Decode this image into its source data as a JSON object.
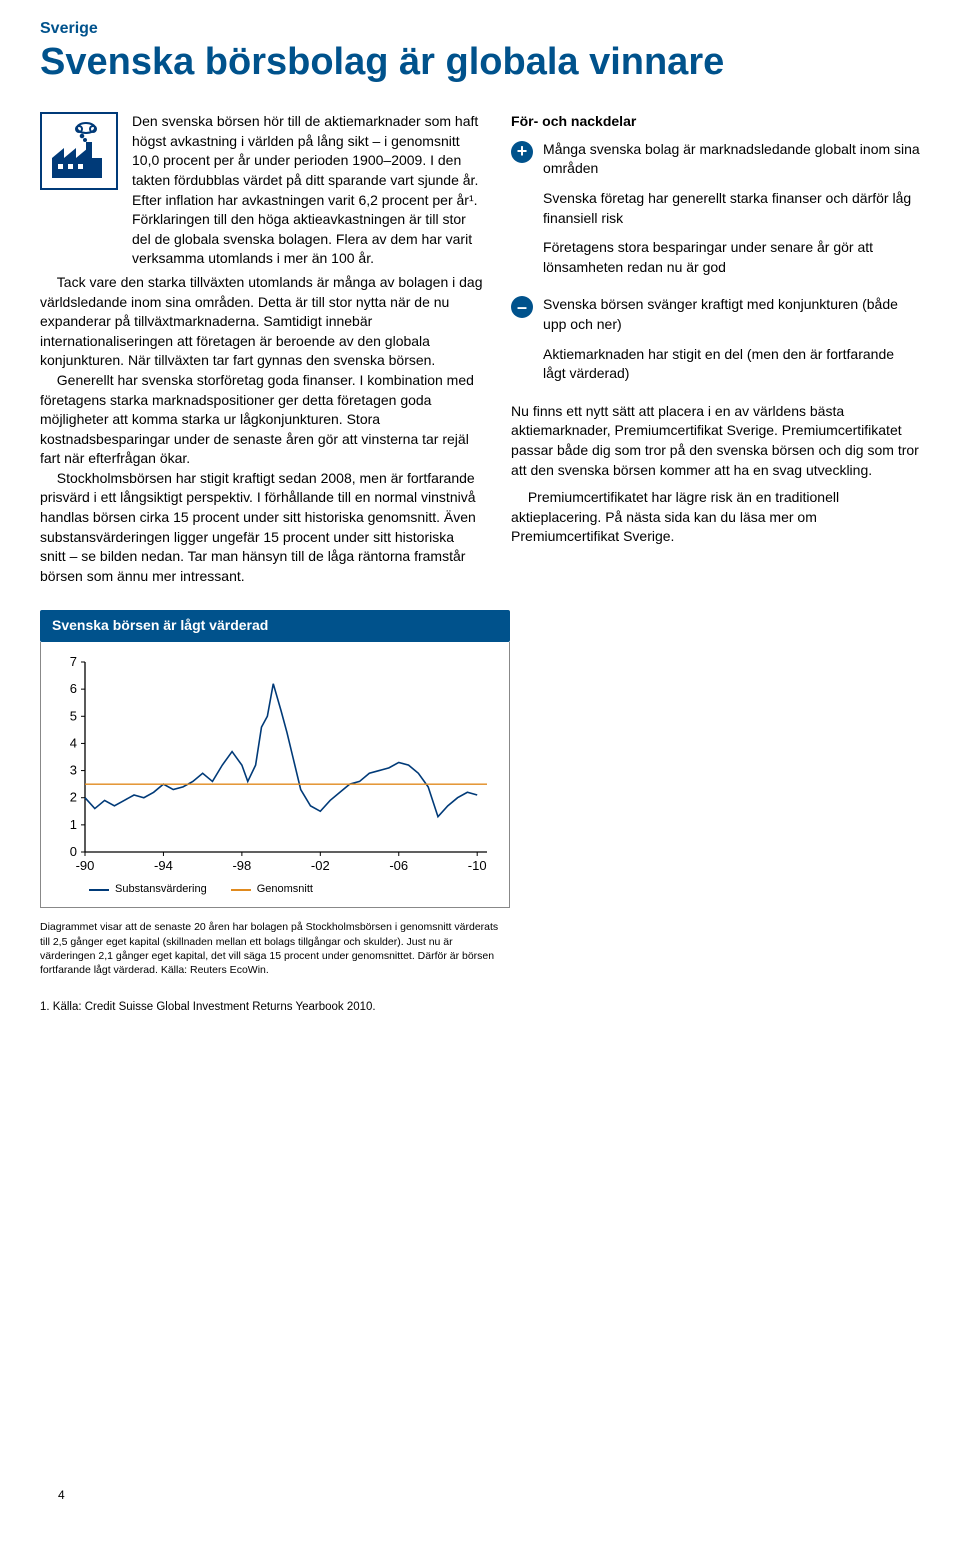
{
  "eyebrow": "Sverige",
  "eyebrow_color": "#00528c",
  "headline": "Svenska börsbolag är globala vinnare",
  "headline_color": "#00528c",
  "left": {
    "p1": "Den svenska börsen hör till de aktiemarknader som haft högst avkastning i världen på lång sikt – i genomsnitt 10,0 procent per år under perioden 1900–2009. I den takten fördubblas värdet på ditt sparande vart sjunde år. Efter inflation har avkastningen varit 6,2 procent per år¹. Förklaringen till den höga aktieavkastningen är till stor del de globala svenska bolagen. Flera av dem har varit verksamma utomlands i mer än 100 år.",
    "p2": "Tack vare den starka tillväxten utomlands är många av bolagen i dag världsledande inom sina områden. Detta är till stor nytta när de nu expanderar på tillväxtmarknaderna. Samtidigt innebär internationaliseringen att företagen är beroende av den globala konjunkturen. När tillväxten tar fart gynnas den svenska börsen.",
    "p3": "Generellt har svenska storföretag goda finanser. I kombination med företagens starka marknadspositioner ger detta företagen goda möjligheter att komma starka ur lågkonjunkturen. Stora kostnadsbesparingar under de senaste åren gör att vinsterna tar rejäl fart när efterfrågan ökar.",
    "p4": "Stockholmsbörsen har stigit kraftigt sedan 2008, men är fortfarande prisvärd i ett långsiktigt perspektiv. I förhållande till en normal vinstnivå handlas börsen cirka 15 procent under sitt historiska genomsnitt. Även substansvärderingen ligger ungefär 15 procent under sitt historiska snitt – se bilden nedan. Tar man hänsyn till de låga räntorna framstår börsen som ännu mer intressant."
  },
  "right": {
    "heading": "För- och nackdelar",
    "plus_items": [
      "Många svenska bolag är marknadsledande globalt inom sina områden",
      "Svenska företag har generellt starka finanser och därför låg finansiell risk",
      "Företagens stora besparingar under senare år gör att lönsamheten redan nu är god"
    ],
    "minus_items": [
      "Svenska börsen svänger kraftigt med konjunkturen (både upp och ner)",
      "Aktiemarknaden har stigit en del (men den är fortfarande lågt värderad)"
    ],
    "body1": "Nu finns ett nytt sätt att placera i en av världens bästa aktiemarknader, Premiumcertifikat Sverige. Premiumcertifikatet passar både dig som tror på den svenska börsen och dig som tror att den svenska börsen kommer att ha en svag utveckling.",
    "body2": "Premiumcertifikatet har lägre risk än en traditionell aktieplacering. På nästa sida kan du läsa mer om Premiumcertifikat Sverige."
  },
  "chart": {
    "title": "Svenska börsen är lågt värderad",
    "type": "line",
    "ylim": [
      0,
      7
    ],
    "ytick_step": 1,
    "xticks_labels": [
      "-90",
      "-94",
      "-98",
      "-02",
      "-06",
      "-10"
    ],
    "xticks_pos": [
      0,
      4,
      8,
      12,
      16,
      20
    ],
    "xlim": [
      0,
      20.5
    ],
    "series": [
      {
        "name": "Substansvärdering",
        "color": "#003a78",
        "width": 1.6,
        "points": [
          [
            0,
            2.0
          ],
          [
            0.5,
            1.6
          ],
          [
            1,
            1.9
          ],
          [
            1.5,
            1.7
          ],
          [
            2,
            1.9
          ],
          [
            2.5,
            2.1
          ],
          [
            3,
            2.0
          ],
          [
            3.5,
            2.2
          ],
          [
            4,
            2.5
          ],
          [
            4.5,
            2.3
          ],
          [
            5,
            2.4
          ],
          [
            5.5,
            2.6
          ],
          [
            6,
            2.9
          ],
          [
            6.5,
            2.6
          ],
          [
            7,
            3.2
          ],
          [
            7.5,
            3.7
          ],
          [
            8,
            3.2
          ],
          [
            8.3,
            2.6
          ],
          [
            8.7,
            3.2
          ],
          [
            9,
            4.6
          ],
          [
            9.3,
            5.0
          ],
          [
            9.6,
            6.2
          ],
          [
            10,
            5.2
          ],
          [
            10.3,
            4.4
          ],
          [
            10.6,
            3.5
          ],
          [
            11,
            2.3
          ],
          [
            11.5,
            1.7
          ],
          [
            12,
            1.5
          ],
          [
            12.5,
            1.9
          ],
          [
            13,
            2.2
          ],
          [
            13.5,
            2.5
          ],
          [
            14,
            2.6
          ],
          [
            14.5,
            2.9
          ],
          [
            15,
            3.0
          ],
          [
            15.5,
            3.1
          ],
          [
            16,
            3.3
          ],
          [
            16.5,
            3.2
          ],
          [
            17,
            2.9
          ],
          [
            17.5,
            2.4
          ],
          [
            18,
            1.3
          ],
          [
            18.5,
            1.7
          ],
          [
            19,
            2.0
          ],
          [
            19.5,
            2.2
          ],
          [
            20,
            2.1
          ]
        ]
      },
      {
        "name": "Genomsnitt",
        "color": "#e08a1e",
        "width": 1.4,
        "points": [
          [
            0,
            2.5
          ],
          [
            20.5,
            2.5
          ]
        ]
      }
    ],
    "axis_color": "#000000",
    "axis_fontsize": 13,
    "caption": "Diagrammet visar att de senaste 20 åren har bolagen på Stockholmsbörsen i genomsnitt värderats till 2,5 gånger eget kapital (skillnaden mellan ett bolags tillgångar och skulder). Just nu är värderingen 2,1 gånger eget kapital, det vill säga 15 procent under genomsnittet. Därför är börsen fortfarande lågt värderad. Källa: Reuters EcoWin."
  },
  "footnote": "1. Källa: Credit Suisse Global Investment Returns Yearbook 2010.",
  "page_number": "4"
}
